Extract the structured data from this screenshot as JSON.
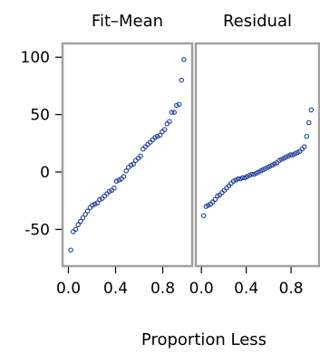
{
  "chart_data": {
    "type": "scatter",
    "xlabel": "Proportion Less",
    "ylabel": "",
    "xlim": [
      -0.05,
      1.05
    ],
    "ylim": [
      -82,
      112
    ],
    "y_ticks": [
      100,
      50,
      0,
      -50
    ],
    "x_ticks": [
      "0.0",
      "0.4",
      "0.8"
    ],
    "x_tick_values": [
      0.0,
      0.4,
      0.8
    ],
    "point_color": "#1f3f9a",
    "frame_color": "#a0a0a0",
    "panels": [
      {
        "title": "Fit–Mean",
        "x": [
          0.02,
          0.041,
          0.061,
          0.082,
          0.102,
          0.122,
          0.143,
          0.163,
          0.184,
          0.204,
          0.224,
          0.245,
          0.265,
          0.286,
          0.306,
          0.327,
          0.347,
          0.367,
          0.388,
          0.408,
          0.429,
          0.449,
          0.469,
          0.49,
          0.51,
          0.531,
          0.551,
          0.571,
          0.592,
          0.612,
          0.633,
          0.653,
          0.673,
          0.694,
          0.714,
          0.735,
          0.755,
          0.776,
          0.796,
          0.816,
          0.837,
          0.857,
          0.878,
          0.898,
          0.918,
          0.939,
          0.959,
          0.98
        ],
        "y": [
          -68,
          -52,
          -50,
          -46,
          -43,
          -40,
          -37,
          -34,
          -31,
          -29,
          -28,
          -27,
          -24,
          -23,
          -21,
          -19,
          -17,
          -16,
          -14,
          -8,
          -7,
          -6,
          -4,
          1,
          4,
          6,
          7,
          10,
          12,
          14,
          20,
          22,
          24,
          26,
          28,
          30,
          31,
          32,
          35,
          37,
          42,
          44,
          52,
          52,
          58,
          59,
          80,
          98
        ]
      },
      {
        "title": "Residual",
        "x": [
          0.02,
          0.041,
          0.061,
          0.082,
          0.102,
          0.122,
          0.143,
          0.163,
          0.184,
          0.204,
          0.224,
          0.245,
          0.265,
          0.286,
          0.306,
          0.327,
          0.347,
          0.367,
          0.388,
          0.408,
          0.429,
          0.449,
          0.469,
          0.49,
          0.51,
          0.531,
          0.551,
          0.571,
          0.592,
          0.612,
          0.633,
          0.653,
          0.673,
          0.694,
          0.714,
          0.735,
          0.755,
          0.776,
          0.796,
          0.816,
          0.837,
          0.857,
          0.878,
          0.898,
          0.918,
          0.939,
          0.959,
          0.98
        ],
        "y": [
          -38,
          -30,
          -29,
          -28,
          -26,
          -24,
          -21,
          -20,
          -18,
          -16,
          -14,
          -12,
          -10,
          -8,
          -7,
          -6,
          -6,
          -5,
          -5,
          -4,
          -3,
          -2,
          -2,
          -1,
          0,
          1,
          2,
          3,
          4,
          5,
          6,
          7,
          8,
          10,
          11,
          12,
          13,
          14,
          15,
          15,
          16,
          17,
          18,
          20,
          22,
          31,
          43,
          54
        ]
      }
    ]
  }
}
